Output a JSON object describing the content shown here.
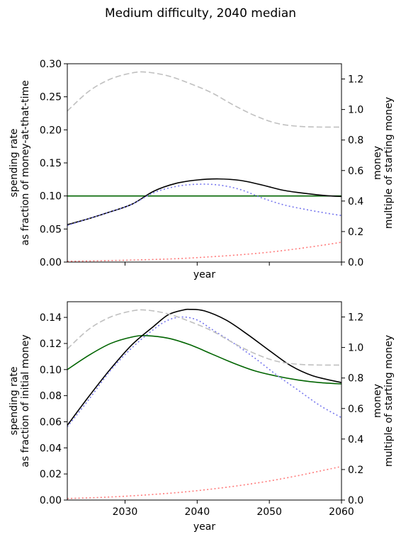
{
  "title": "Medium difficulty, 2040 median",
  "chart_data": [
    {
      "type": "line",
      "xlabel": "year",
      "ylabel_left": [
        "spending rate",
        "as fraction of money-at-that-time"
      ],
      "ylabel_right": [
        "money",
        "multiple of starting money"
      ],
      "xlim": [
        2022,
        2060
      ],
      "ylim_left": [
        0,
        0.3
      ],
      "ylim_right": [
        0,
        1.3
      ],
      "xticks": [
        2030,
        2040,
        2050,
        2060
      ],
      "xtick_labels_visible": false,
      "yticks_left": [
        0.0,
        0.05,
        0.1,
        0.15,
        0.2,
        0.25,
        0.3
      ],
      "yticks_left_labels": [
        "0.00",
        "0.05",
        "0.10",
        "0.15",
        "0.20",
        "0.25",
        "0.30"
      ],
      "yticks_right": [
        0.0,
        0.2,
        0.4,
        0.6,
        0.8,
        1.0,
        1.2
      ],
      "yticks_right_labels": [
        "0.0",
        "0.2",
        "0.4",
        "0.6",
        "0.8",
        "1.0",
        "1.2"
      ],
      "grid": false,
      "series": [
        {
          "axis": "left",
          "color": "#006400",
          "style": "solid",
          "x": [
            2022,
            2060
          ],
          "y": [
            0.1,
            0.1
          ]
        },
        {
          "axis": "right",
          "color": "#000000",
          "style": "solid",
          "x": [
            2022,
            2025,
            2028,
            2031,
            2034,
            2037,
            2040,
            2043,
            2046,
            2049,
            2052,
            2055,
            2058,
            2060
          ],
          "y": [
            0.245,
            0.285,
            0.33,
            0.38,
            0.465,
            0.515,
            0.538,
            0.545,
            0.535,
            0.505,
            0.47,
            0.45,
            0.435,
            0.43
          ]
        },
        {
          "axis": "right",
          "color": "#7777ee",
          "style": "dotted",
          "x": [
            2022,
            2025,
            2028,
            2031,
            2034,
            2037,
            2040,
            2043,
            2046,
            2049,
            2052,
            2055,
            2058,
            2060
          ],
          "y": [
            0.24,
            0.285,
            0.33,
            0.38,
            0.455,
            0.495,
            0.51,
            0.505,
            0.475,
            0.42,
            0.375,
            0.345,
            0.32,
            0.305
          ]
        },
        {
          "axis": "right",
          "color": "#ff7b7b",
          "style": "dotted",
          "x": [
            2022,
            2026,
            2030,
            2034,
            2038,
            2042,
            2046,
            2050,
            2054,
            2058,
            2060
          ],
          "y": [
            0.005,
            0.008,
            0.012,
            0.017,
            0.024,
            0.035,
            0.048,
            0.065,
            0.088,
            0.115,
            0.13
          ]
        },
        {
          "axis": "right",
          "color": "#c0c0c0",
          "style": "dashed",
          "x": [
            2022,
            2025,
            2028,
            2031,
            2033,
            2036,
            2039,
            2042,
            2045,
            2048,
            2051,
            2054,
            2057,
            2060
          ],
          "y": [
            0.99,
            1.12,
            1.2,
            1.24,
            1.245,
            1.22,
            1.17,
            1.11,
            1.03,
            0.96,
            0.91,
            0.89,
            0.885,
            0.885
          ]
        }
      ]
    },
    {
      "type": "line",
      "xlabel": "year",
      "ylabel_left": [
        "spending rate",
        "as fraction of initial money"
      ],
      "ylabel_right": [
        "money",
        "multiple of starting money"
      ],
      "xlim": [
        2022,
        2060
      ],
      "ylim_left": [
        0,
        0.152
      ],
      "ylim_right": [
        0,
        1.3
      ],
      "xticks": [
        2030,
        2040,
        2050,
        2060
      ],
      "xtick_labels": [
        "2030",
        "2040",
        "2050",
        "2060"
      ],
      "yticks_left": [
        0.0,
        0.02,
        0.04,
        0.06,
        0.08,
        0.1,
        0.12,
        0.14
      ],
      "yticks_left_labels": [
        "0.00",
        "0.02",
        "0.04",
        "0.06",
        "0.08",
        "0.10",
        "0.12",
        "0.14"
      ],
      "yticks_right": [
        0.0,
        0.2,
        0.4,
        0.6,
        0.8,
        1.0,
        1.2
      ],
      "yticks_right_labels": [
        "0.0",
        "0.2",
        "0.4",
        "0.6",
        "0.8",
        "1.0",
        "1.2"
      ],
      "grid": false,
      "series": [
        {
          "axis": "left",
          "color": "#006400",
          "style": "solid",
          "x": [
            2022,
            2025,
            2028,
            2031,
            2033,
            2036,
            2039,
            2042,
            2045,
            2048,
            2051,
            2054,
            2057,
            2060
          ],
          "y": [
            0.1,
            0.111,
            0.12,
            0.125,
            0.126,
            0.124,
            0.119,
            0.112,
            0.105,
            0.099,
            0.095,
            0.092,
            0.09,
            0.089
          ]
        },
        {
          "axis": "right",
          "color": "#000000",
          "style": "solid",
          "x": [
            2022,
            2025,
            2028,
            2031,
            2034,
            2036,
            2038,
            2039,
            2041,
            2044,
            2047,
            2050,
            2053,
            2056,
            2060
          ],
          "y": [
            0.49,
            0.68,
            0.86,
            1.02,
            1.14,
            1.215,
            1.245,
            1.25,
            1.24,
            1.18,
            1.085,
            0.98,
            0.88,
            0.815,
            0.77
          ]
        },
        {
          "axis": "right",
          "color": "#7777ee",
          "style": "dotted",
          "x": [
            2022,
            2025,
            2028,
            2031,
            2034,
            2036,
            2038,
            2040,
            2042,
            2045,
            2048,
            2051,
            2054,
            2057,
            2060
          ],
          "y": [
            0.48,
            0.66,
            0.85,
            1.0,
            1.12,
            1.18,
            1.2,
            1.18,
            1.12,
            1.03,
            0.93,
            0.82,
            0.72,
            0.62,
            0.54
          ]
        },
        {
          "axis": "right",
          "color": "#ff7b7b",
          "style": "dotted",
          "x": [
            2022,
            2026,
            2030,
            2034,
            2038,
            2042,
            2046,
            2050,
            2054,
            2058,
            2060
          ],
          "y": [
            0.01,
            0.016,
            0.025,
            0.037,
            0.052,
            0.072,
            0.096,
            0.125,
            0.16,
            0.2,
            0.22
          ]
        },
        {
          "axis": "right",
          "color": "#c0c0c0",
          "style": "dashed",
          "x": [
            2022,
            2025,
            2028,
            2031,
            2033,
            2036,
            2039,
            2042,
            2045,
            2048,
            2051,
            2054,
            2057,
            2060
          ],
          "y": [
            0.99,
            1.12,
            1.2,
            1.24,
            1.245,
            1.22,
            1.17,
            1.11,
            1.03,
            0.96,
            0.91,
            0.89,
            0.885,
            0.885
          ]
        }
      ]
    }
  ]
}
